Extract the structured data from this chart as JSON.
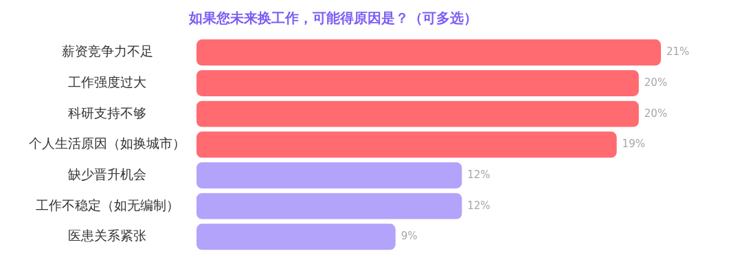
{
  "chart_data": {
    "type": "bar",
    "orientation": "horizontal",
    "title": "如果您未来换工作，可能得原因是？（可多选）",
    "categories": [
      "薪资竞争力不足",
      "工作强度过大",
      "科研支持不够",
      "个人生活原因（如换城市）",
      "缺少晋升机会",
      "工作不稳定（如无编制）",
      "医患关系紧张"
    ],
    "values": [
      21,
      20,
      20,
      19,
      12,
      12,
      9
    ],
    "value_labels": [
      "21%",
      "20%",
      "20%",
      "19%",
      "12%",
      "12%",
      "9%"
    ],
    "colors": [
      "#ff6b70",
      "#ff6b70",
      "#ff6b70",
      "#ff6b70",
      "#b3a3fb",
      "#b3a3fb",
      "#b3a3fb"
    ]
  }
}
